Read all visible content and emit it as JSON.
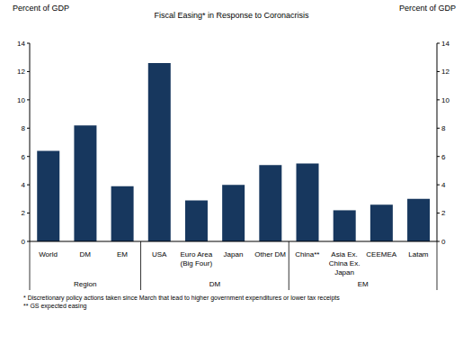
{
  "chart_data": {
    "type": "bar",
    "title": "Fiscal Easing* in Response to Coronacrisis",
    "y_label": "Percent of GDP",
    "y2_label": "Percent of GDP",
    "categories": [
      "World",
      "DM",
      "EM",
      "USA",
      "Euro Area (Big Four)",
      "Japan",
      "Other DM",
      "China**",
      "Asia Ex. China Ex. Japan",
      "CEEMEA",
      "Latam"
    ],
    "category_groups": [
      "Region",
      "Region",
      "Region",
      "DM",
      "DM",
      "DM",
      "DM",
      "EM",
      "EM",
      "EM",
      "EM"
    ],
    "values": [
      6.4,
      8.2,
      3.9,
      12.6,
      2.9,
      4.0,
      5.4,
      5.5,
      2.2,
      2.6,
      3.0
    ],
    "color": "#17375e",
    "ylim": [
      0,
      14
    ],
    "yticks": [
      0,
      2,
      4,
      6,
      8,
      10,
      12,
      14
    ],
    "y2lim": [
      0,
      14
    ],
    "y2ticks": [
      0,
      2,
      4,
      6,
      8,
      10,
      12,
      14
    ],
    "grid": false,
    "notes": [
      "* Discretionary policy actions taken since March that lead to higher government expenditures or lower tax receipts",
      "** GS expected easing"
    ]
  }
}
